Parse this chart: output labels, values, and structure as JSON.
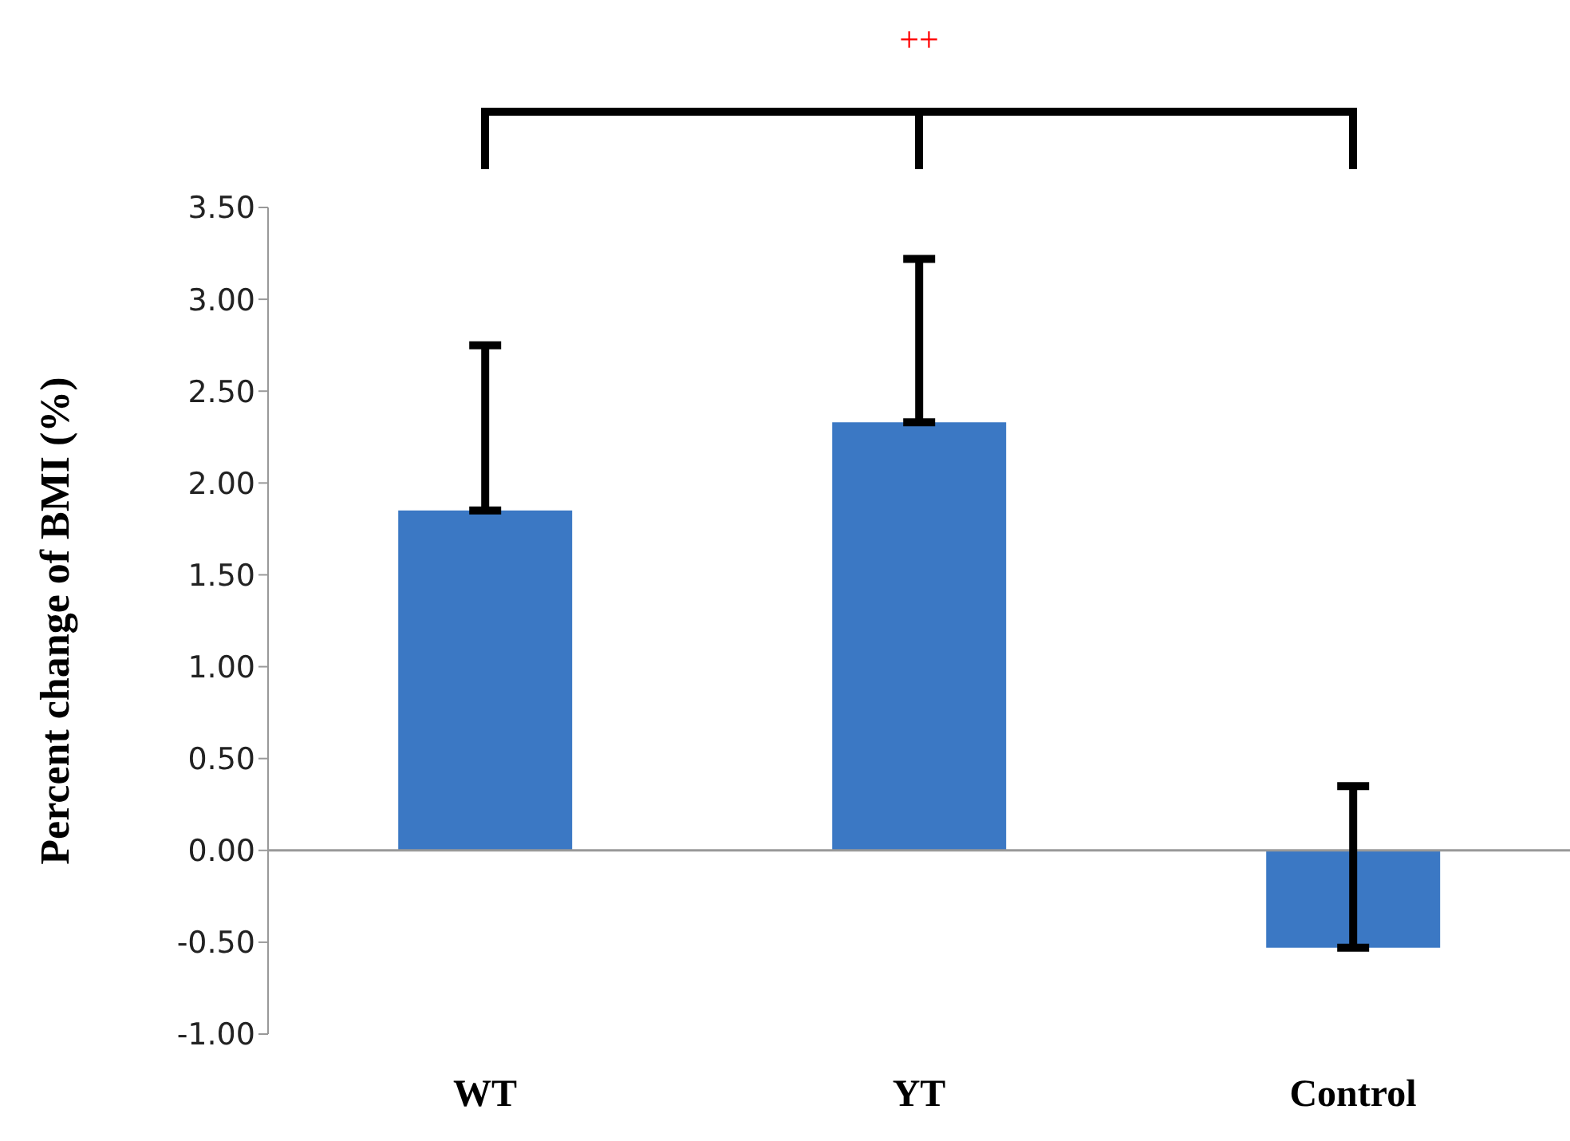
{
  "chart_data": {
    "type": "bar",
    "ylabel": "Percent change of BMI (%)",
    "categories": [
      "WT",
      "YT",
      "Control"
    ],
    "values": [
      1.85,
      2.33,
      -0.53
    ],
    "errors": [
      [
        1.85,
        2.75
      ],
      [
        2.33,
        3.22
      ],
      [
        -0.53,
        0.35
      ]
    ],
    "color": "#3b78c4",
    "ylim": [
      -1,
      3.5
    ],
    "yticks": [
      {
        "value": -1,
        "label": "-1.00"
      },
      {
        "value": -0.5,
        "label": "-0.50"
      },
      {
        "value": 0,
        "label": "0.00"
      },
      {
        "value": 0.5,
        "label": "0.50"
      },
      {
        "value": 1,
        "label": "1.00"
      },
      {
        "value": 1.5,
        "label": "1.50"
      },
      {
        "value": 2,
        "label": "2.00"
      },
      {
        "value": 2.5,
        "label": "2.50"
      },
      {
        "value": 3,
        "label": "3.00"
      },
      {
        "value": 3.5,
        "label": "3.50"
      }
    ],
    "annotations": [
      "++"
    ],
    "legend": false
  }
}
